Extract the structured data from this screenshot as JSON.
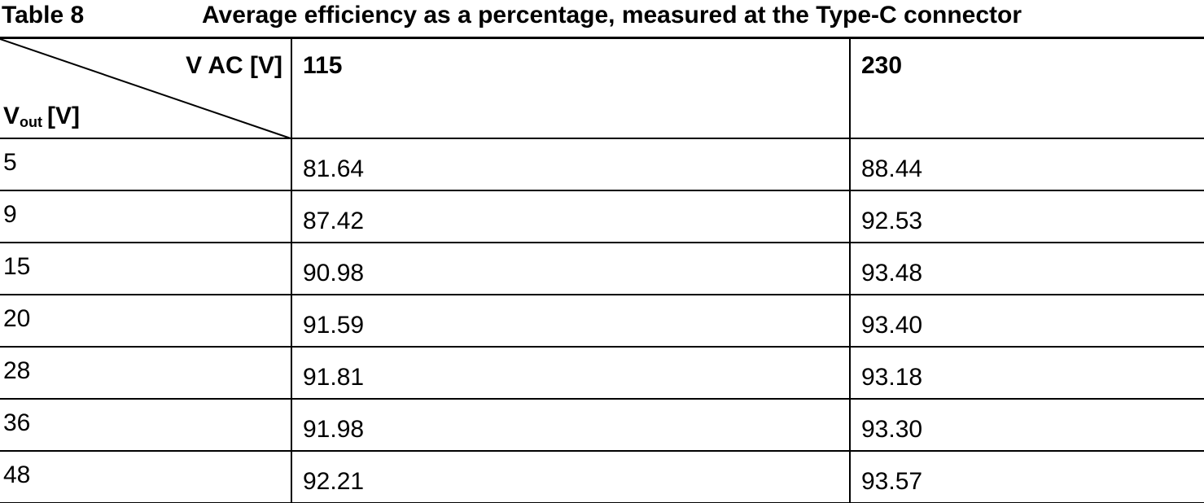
{
  "caption": {
    "label": "Table 8",
    "title": "Average efficiency as a percentage, measured at the Type-C connector"
  },
  "table": {
    "corner": {
      "column_axis": "V AC [V]",
      "row_axis": {
        "symbol": "V",
        "subscript": "out",
        "unit": "[V]"
      }
    },
    "columns": [
      "115",
      "230"
    ],
    "rows": [
      [
        "5",
        "81.64",
        "88.44"
      ],
      [
        "9",
        "87.42",
        "92.53"
      ],
      [
        "15",
        "90.98",
        "93.48"
      ],
      [
        "20",
        "91.59",
        "93.40"
      ],
      [
        "28",
        "91.81",
        "93.18"
      ],
      [
        "36",
        "91.98",
        "93.30"
      ],
      [
        "48",
        "92.21",
        "93.57"
      ]
    ]
  }
}
